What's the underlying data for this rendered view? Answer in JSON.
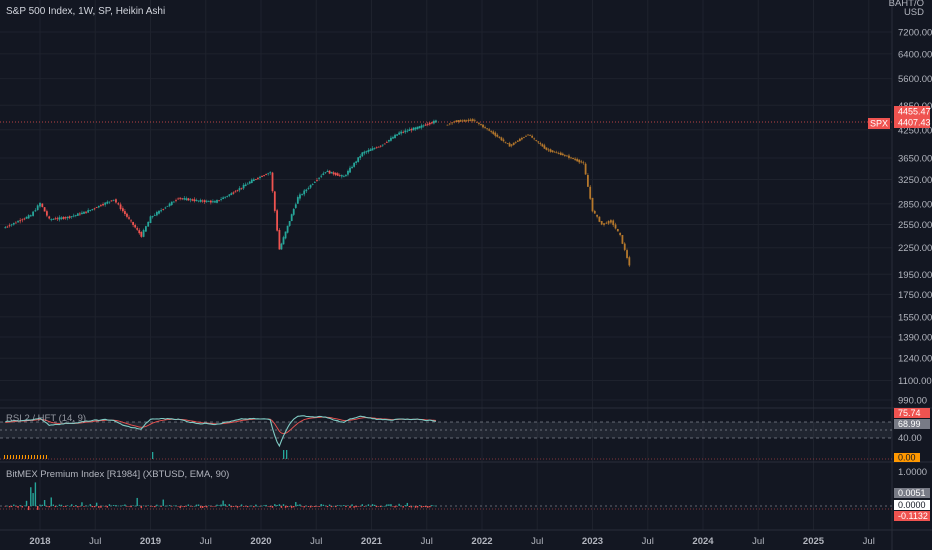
{
  "main_title": "S&P 500 Index, 1W, SP, Heikin Ashi",
  "currency": {
    "line1": "BAHT/O",
    "line2": "USD"
  },
  "symbol_tag": "SPX",
  "price_tag_upper": "4455.47",
  "price_tag_lower": "4407.43",
  "colors": {
    "up": "#26a69a",
    "down": "#ef5350",
    "projection": "#b5782c",
    "background": "#131722",
    "rsi_line": "#80cbc4",
    "rsi_signal": "#ef5350",
    "premium_up": "#26a69a",
    "premium_down": "#ef5350"
  },
  "rsi_panel": {
    "title": "RSI 2 / HFT (14, 9)",
    "value_tag": "75.74",
    "value_tag2": "68.99",
    "axis_label": "40.00",
    "bottom_tag": "0.00"
  },
  "premium_panel": {
    "title": "BitMEX Premium Index [R1984] (XBTUSD, EMA, 90)",
    "axis_top": "1.0000",
    "tag_upper": "0.0051",
    "tag_mid": "0.0000",
    "tag_lower": "-0.1132"
  },
  "chart_data": {
    "type": "candlestick",
    "y_scale": "log",
    "y_ticks": [
      7200,
      6400,
      5600,
      4850,
      4250,
      3650,
      3250,
      2850,
      2550,
      2250,
      1950,
      1750,
      1550,
      1390,
      1240,
      1100,
      990
    ],
    "x_ticks": [
      "2018",
      "Jul",
      "2019",
      "Jul",
      "2020",
      "Jul",
      "2021",
      "Jul",
      "2022",
      "Jul",
      "2023",
      "Jul",
      "2024",
      "Jul",
      "2025",
      "Jul"
    ],
    "historical_series": [
      {
        "date": "2017-09",
        "value": 2500
      },
      {
        "date": "2017-12",
        "value": 2680
      },
      {
        "date": "2018-01",
        "value": 2860
      },
      {
        "date": "2018-02",
        "value": 2620
      },
      {
        "date": "2018-04",
        "value": 2650
      },
      {
        "date": "2018-06",
        "value": 2730
      },
      {
        "date": "2018-09",
        "value": 2920
      },
      {
        "date": "2018-10",
        "value": 2740
      },
      {
        "date": "2018-12",
        "value": 2400
      },
      {
        "date": "2019-01",
        "value": 2650
      },
      {
        "date": "2019-04",
        "value": 2940
      },
      {
        "date": "2019-06",
        "value": 2900
      },
      {
        "date": "2019-08",
        "value": 2880
      },
      {
        "date": "2019-10",
        "value": 3030
      },
      {
        "date": "2019-12",
        "value": 3230
      },
      {
        "date": "2020-02",
        "value": 3380
      },
      {
        "date": "2020-03",
        "value": 2230
      },
      {
        "date": "2020-05",
        "value": 2950
      },
      {
        "date": "2020-08",
        "value": 3400
      },
      {
        "date": "2020-10",
        "value": 3300
      },
      {
        "date": "2020-12",
        "value": 3750
      },
      {
        "date": "2021-02",
        "value": 3900
      },
      {
        "date": "2021-04",
        "value": 4180
      },
      {
        "date": "2021-06",
        "value": 4300
      },
      {
        "date": "2021-08",
        "value": 4455
      }
    ],
    "projection_series": [
      {
        "date": "2021-09",
        "value": 4350
      },
      {
        "date": "2021-10",
        "value": 4450
      },
      {
        "date": "2021-12",
        "value": 4480
      },
      {
        "date": "2022-02",
        "value": 4200
      },
      {
        "date": "2022-04",
        "value": 3900
      },
      {
        "date": "2022-06",
        "value": 4150
      },
      {
        "date": "2022-08",
        "value": 3820
      },
      {
        "date": "2022-10",
        "value": 3700
      },
      {
        "date": "2022-12",
        "value": 3550
      },
      {
        "date": "2023-01",
        "value": 2750
      },
      {
        "date": "2023-02",
        "value": 2550
      },
      {
        "date": "2023-03",
        "value": 2600
      },
      {
        "date": "2023-04",
        "value": 2400
      },
      {
        "date": "2023-05",
        "value": 2050
      }
    ]
  }
}
